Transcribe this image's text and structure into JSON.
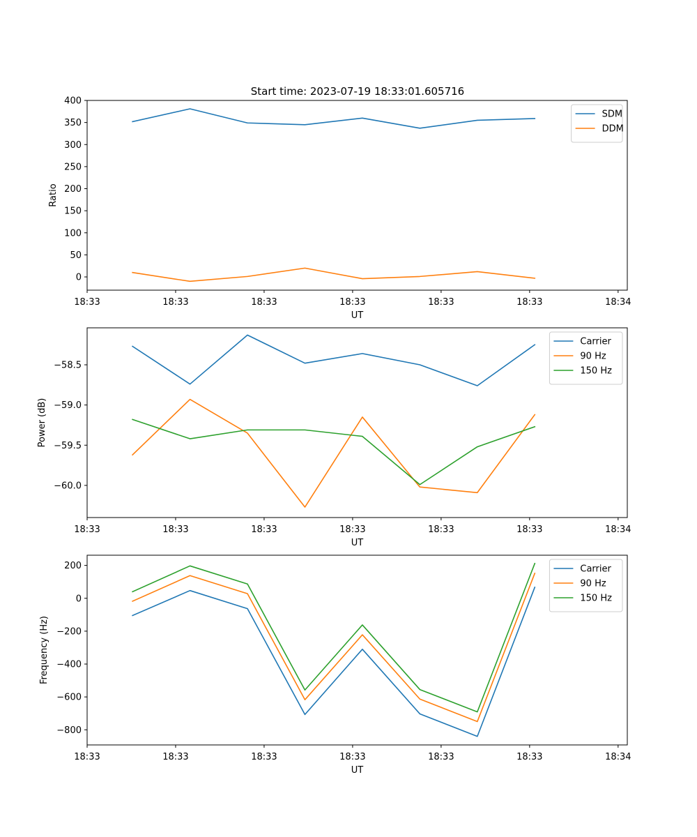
{
  "figure_title": "Start time: 2023-07-19 18:33:01.605716",
  "colors": {
    "blue": "#1f77b4",
    "orange": "#ff7f0e",
    "green": "#2ca02c"
  },
  "chart_data": [
    {
      "type": "line",
      "title": "Start time: 2023-07-19 18:33:01.605716",
      "xlabel": "UT",
      "ylabel": "Ratio",
      "x": [
        1,
        2,
        3,
        4,
        5,
        6,
        7,
        8
      ],
      "xlim": [
        0.21,
        9.61
      ],
      "x_ticks": [
        {
          "value": 0.21,
          "label": "18:33"
        },
        {
          "value": 1.75,
          "label": "18:33"
        },
        {
          "value": 3.29,
          "label": "18:33"
        },
        {
          "value": 4.83,
          "label": "18:33"
        },
        {
          "value": 6.37,
          "label": "18:33"
        },
        {
          "value": 7.91,
          "label": "18:33"
        },
        {
          "value": 9.45,
          "label": "18:34"
        }
      ],
      "ylim": [
        -30,
        400
      ],
      "y_ticks": [
        {
          "value": 0,
          "label": "0"
        },
        {
          "value": 50,
          "label": "50"
        },
        {
          "value": 100,
          "label": "100"
        },
        {
          "value": 150,
          "label": "150"
        },
        {
          "value": 200,
          "label": "200"
        },
        {
          "value": 250,
          "label": "250"
        },
        {
          "value": 300,
          "label": "300"
        },
        {
          "value": 350,
          "label": "350"
        },
        {
          "value": 400,
          "label": "400"
        }
      ],
      "legend_position": "top-right",
      "series": [
        {
          "name": "SDM",
          "color": "#1f77b4",
          "values": [
            352,
            381,
            349,
            345,
            360,
            337,
            355,
            359
          ]
        },
        {
          "name": "DDM",
          "color": "#ff7f0e",
          "values": [
            10,
            -10,
            1,
            20,
            -4,
            1,
            12,
            -3
          ]
        }
      ]
    },
    {
      "type": "line",
      "title": "",
      "xlabel": "UT",
      "ylabel": "Power (dB)",
      "x": [
        1,
        2,
        3,
        4,
        5,
        6,
        7,
        8
      ],
      "xlim": [
        0.21,
        9.61
      ],
      "x_ticks": [
        {
          "value": 0.21,
          "label": "18:33"
        },
        {
          "value": 1.75,
          "label": "18:33"
        },
        {
          "value": 3.29,
          "label": "18:33"
        },
        {
          "value": 4.83,
          "label": "18:33"
        },
        {
          "value": 6.37,
          "label": "18:33"
        },
        {
          "value": 7.91,
          "label": "18:33"
        },
        {
          "value": 9.45,
          "label": "18:34"
        }
      ],
      "ylim": [
        -60.4,
        -58.04
      ],
      "y_ticks": [
        {
          "value": -58.5,
          "label": "−58.5"
        },
        {
          "value": -59.0,
          "label": "−59.0"
        },
        {
          "value": -59.5,
          "label": "−59.5"
        },
        {
          "value": -60.0,
          "label": "−60.0"
        }
      ],
      "legend_position": "top-right",
      "series": [
        {
          "name": "Carrier",
          "color": "#1f77b4",
          "values": [
            -58.27,
            -58.74,
            -58.13,
            -58.48,
            -58.36,
            -58.5,
            -58.76,
            -58.25
          ]
        },
        {
          "name": "90 Hz",
          "color": "#ff7f0e",
          "values": [
            -59.62,
            -58.93,
            -59.35,
            -60.27,
            -59.15,
            -60.02,
            -60.09,
            -59.12
          ]
        },
        {
          "name": "150 Hz",
          "color": "#2ca02c",
          "values": [
            -59.18,
            -59.42,
            -59.31,
            -59.31,
            -59.39,
            -59.99,
            -59.52,
            -59.27
          ]
        }
      ]
    },
    {
      "type": "line",
      "title": "",
      "xlabel": "UT",
      "ylabel": "Frequency (Hz)",
      "x": [
        1,
        2,
        3,
        4,
        5,
        6,
        7,
        8
      ],
      "xlim": [
        0.21,
        9.61
      ],
      "x_ticks": [
        {
          "value": 0.21,
          "label": "18:33"
        },
        {
          "value": 1.75,
          "label": "18:33"
        },
        {
          "value": 3.29,
          "label": "18:33"
        },
        {
          "value": 4.83,
          "label": "18:33"
        },
        {
          "value": 6.37,
          "label": "18:33"
        },
        {
          "value": 7.91,
          "label": "18:33"
        },
        {
          "value": 9.45,
          "label": "18:34"
        }
      ],
      "ylim": [
        -892,
        262
      ],
      "y_ticks": [
        {
          "value": 200,
          "label": "200"
        },
        {
          "value": 0,
          "label": "0"
        },
        {
          "value": -200,
          "label": "−200"
        },
        {
          "value": -400,
          "label": "−400"
        },
        {
          "value": -600,
          "label": "−600"
        },
        {
          "value": -800,
          "label": "−800"
        }
      ],
      "legend_position": "top-right",
      "series": [
        {
          "name": "Carrier",
          "color": "#1f77b4",
          "values": [
            -105,
            47,
            -63,
            -707,
            -310,
            -703,
            -840,
            67
          ]
        },
        {
          "name": "90 Hz",
          "color": "#ff7f0e",
          "values": [
            -18,
            138,
            28,
            -617,
            -222,
            -613,
            -750,
            152
          ]
        },
        {
          "name": "150 Hz",
          "color": "#2ca02c",
          "values": [
            40,
            197,
            87,
            -558,
            -162,
            -555,
            -691,
            212
          ]
        }
      ]
    }
  ]
}
